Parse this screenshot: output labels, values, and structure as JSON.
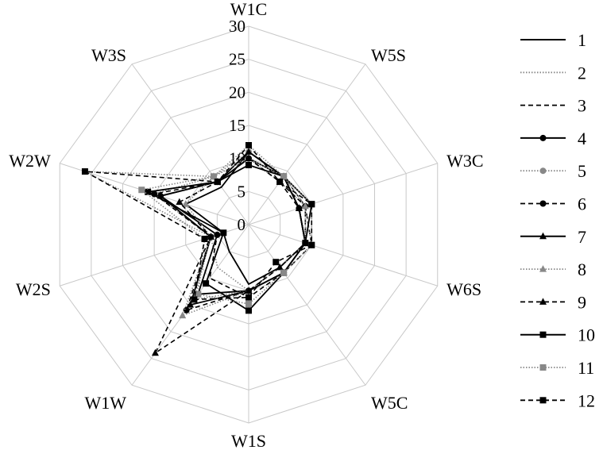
{
  "chart_data": {
    "type": "radar",
    "axes": [
      "W1C",
      "W5S",
      "W3C",
      "W6S",
      "W5C",
      "W1S",
      "W1W",
      "W2S",
      "W2W",
      "W3S"
    ],
    "rlim": [
      0,
      30
    ],
    "ticks": [
      "0",
      "5",
      "10",
      "15",
      "20",
      "25",
      "30"
    ],
    "grid": true,
    "legend_position": "right",
    "series": [
      {
        "name": "1",
        "line": "solid",
        "marker": "none",
        "color": "#000000",
        "values": [
          11,
          9,
          8,
          9,
          8,
          9,
          5,
          4,
          10,
          7
        ]
      },
      {
        "name": "2",
        "line": "dotted",
        "marker": "none",
        "color": "#888888",
        "values": [
          10,
          8,
          9,
          9,
          9,
          10,
          8,
          6,
          26,
          9
        ]
      },
      {
        "name": "3",
        "line": "dashed",
        "marker": "none",
        "color": "#000000",
        "values": [
          11,
          9,
          9,
          10,
          9,
          11,
          10,
          5,
          14,
          8
        ]
      },
      {
        "name": "4",
        "line": "solid",
        "marker": "circle",
        "color": "#000000",
        "values": [
          10,
          9,
          8,
          9,
          9,
          10,
          13,
          5,
          14,
          8
        ]
      },
      {
        "name": "5",
        "line": "dotted",
        "marker": "circle",
        "color": "#888888",
        "values": [
          11,
          9,
          9,
          10,
          9,
          10,
          14,
          6,
          15,
          9
        ]
      },
      {
        "name": "6",
        "line": "dashed",
        "marker": "circle",
        "color": "#000000",
        "values": [
          10,
          8,
          9,
          9,
          9,
          10,
          16,
          6,
          15,
          8
        ]
      },
      {
        "name": "7",
        "line": "solid",
        "marker": "triangle",
        "color": "#000000",
        "values": [
          11,
          9,
          8,
          9,
          9,
          10,
          15,
          6,
          14,
          8
        ]
      },
      {
        "name": "8",
        "line": "dotted",
        "marker": "triangle",
        "color": "#888888",
        "values": [
          10,
          9,
          9,
          9,
          8,
          10,
          17,
          6,
          10,
          9
        ]
      },
      {
        "name": "9",
        "line": "dashed",
        "marker": "triangle",
        "color": "#000000",
        "values": [
          10,
          8,
          8,
          9,
          8,
          10,
          24,
          6,
          11,
          8
        ]
      },
      {
        "name": "10",
        "line": "solid",
        "marker": "square",
        "color": "#000000",
        "values": [
          9,
          9,
          10,
          9,
          9,
          13,
          11,
          4,
          16,
          8
        ]
      },
      {
        "name": "11",
        "line": "dotted",
        "marker": "square",
        "color": "#888888",
        "values": [
          12,
          9,
          10,
          10,
          9,
          12,
          13,
          7,
          17,
          9
        ]
      },
      {
        "name": "12",
        "line": "dashed",
        "marker": "square",
        "color": "#000000",
        "values": [
          12,
          8,
          10,
          10,
          7,
          11,
          14,
          7,
          26,
          8
        ]
      }
    ]
  }
}
